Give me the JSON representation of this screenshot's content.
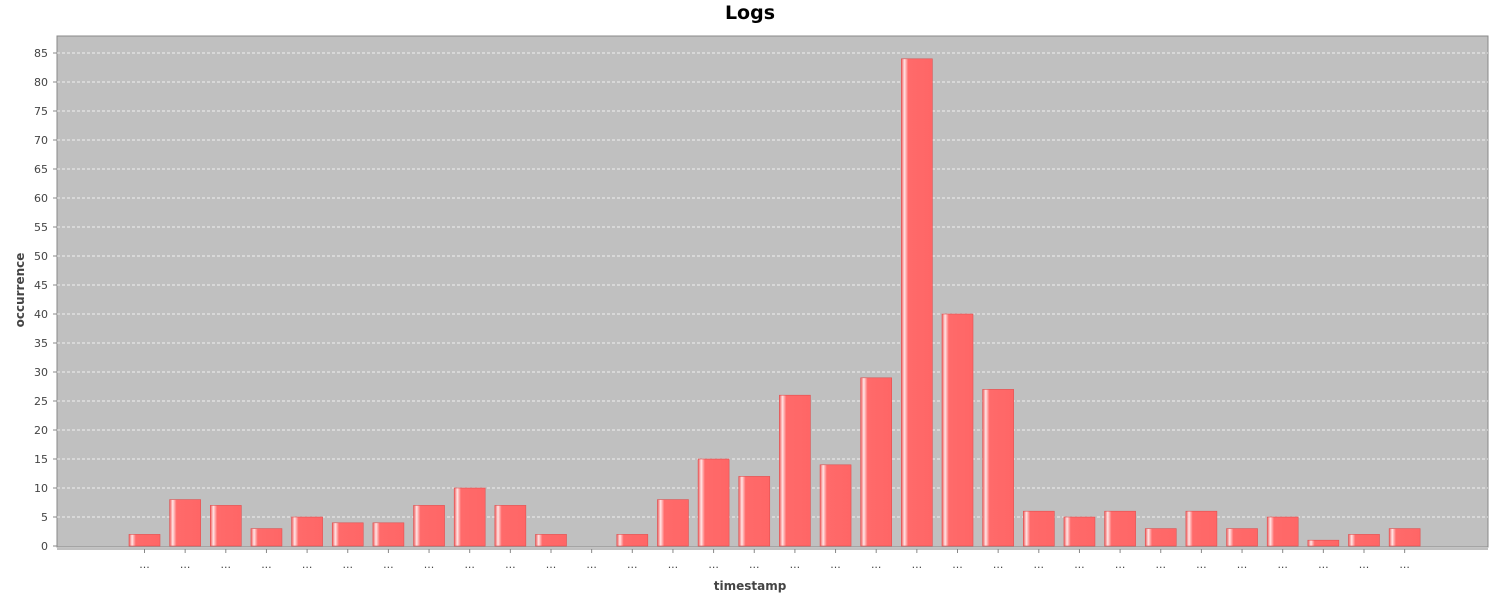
{
  "chart_data": {
    "type": "bar",
    "title": "Logs",
    "xlabel": "timestamp",
    "ylabel": "occurrence",
    "categories": [
      "...",
      "...",
      "...",
      "...",
      "...",
      "...",
      "...",
      "...",
      "...",
      "...",
      "...",
      "...",
      "...",
      "...",
      "...",
      "...",
      "...",
      "...",
      "...",
      "...",
      "...",
      "...",
      "...",
      "...",
      "...",
      "...",
      "...",
      "...",
      "...",
      "...",
      "...",
      "..."
    ],
    "values": [
      2,
      8,
      7,
      3,
      5,
      4,
      4,
      7,
      10,
      7,
      2,
      0,
      2,
      8,
      15,
      12,
      26,
      14,
      29,
      84,
      40,
      27,
      6,
      5,
      6,
      3,
      6,
      3,
      5,
      1,
      2,
      3
    ],
    "ylim": [
      0,
      88
    ],
    "yticks": [
      0,
      5,
      10,
      15,
      20,
      25,
      30,
      35,
      40,
      45,
      50,
      55,
      60,
      65,
      70,
      75,
      80,
      85
    ],
    "grid": true,
    "colors": {
      "bar": "#ff6666",
      "bar_highlight": "#ffe0e0",
      "plot_background": "#c0c0c0",
      "gridline": "#ffffff"
    }
  }
}
